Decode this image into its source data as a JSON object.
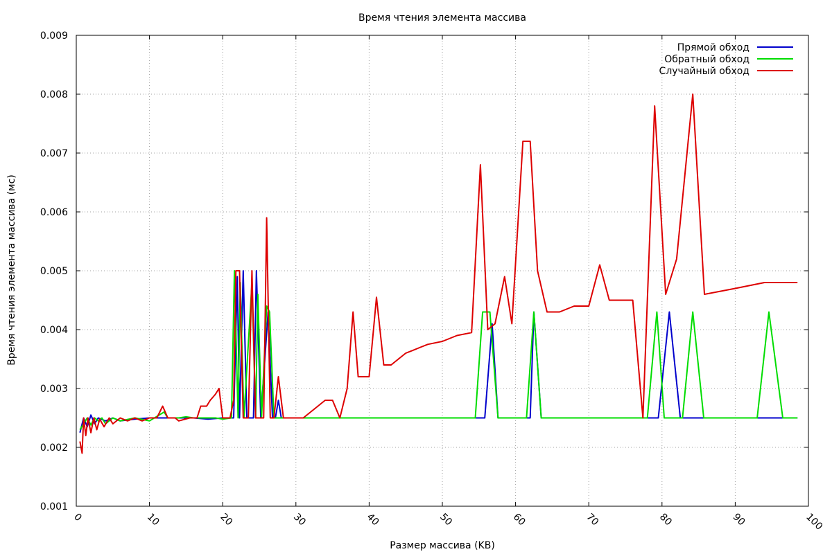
{
  "chart_data": {
    "type": "line",
    "title": "Время чтения элемента массива",
    "xlabel": "Размер массива (KB)",
    "ylabel": "Время чтения элемента массива (мс)",
    "xlim": [
      0,
      100
    ],
    "ylim": [
      0.001,
      0.009
    ],
    "x_ticks": [
      0,
      10,
      20,
      30,
      40,
      50,
      60,
      70,
      80,
      90,
      100
    ],
    "y_ticks": [
      "0.001",
      "0.002",
      "0.003",
      "0.004",
      "0.005",
      "0.006",
      "0.007",
      "0.008",
      "0.009"
    ],
    "grid": true,
    "legend_position": "top-right",
    "series": [
      {
        "name": "Прямой обход",
        "color": "#0000cc",
        "points": [
          [
            0.5,
            0.00225
          ],
          [
            1.0,
            0.0025
          ],
          [
            1.5,
            0.00235
          ],
          [
            2.0,
            0.00255
          ],
          [
            2.5,
            0.0024
          ],
          [
            3.0,
            0.0025
          ],
          [
            4,
            0.00245
          ],
          [
            5,
            0.0025
          ],
          [
            6,
            0.00245
          ],
          [
            8,
            0.00248
          ],
          [
            10,
            0.0025
          ],
          [
            12,
            0.0025
          ],
          [
            14,
            0.0025
          ],
          [
            16,
            0.0025
          ],
          [
            18,
            0.00248
          ],
          [
            20,
            0.0025
          ],
          [
            21.5,
            0.0025
          ],
          [
            22,
            0.0049
          ],
          [
            22.3,
            0.0025
          ],
          [
            22.8,
            0.005
          ],
          [
            23.3,
            0.0025
          ],
          [
            24.2,
            0.0025
          ],
          [
            24.6,
            0.005
          ],
          [
            25.2,
            0.0025
          ],
          [
            26.2,
            0.0043
          ],
          [
            26.8,
            0.0025
          ],
          [
            27.2,
            0.0025
          ],
          [
            27.6,
            0.0028
          ],
          [
            28.0,
            0.0025
          ],
          [
            30,
            0.0025
          ],
          [
            35,
            0.0025
          ],
          [
            40,
            0.0025
          ],
          [
            45,
            0.0025
          ],
          [
            50,
            0.0025
          ],
          [
            55,
            0.0025
          ],
          [
            55.8,
            0.0025
          ],
          [
            56.8,
            0.0041
          ],
          [
            57.6,
            0.0025
          ],
          [
            62,
            0.0025
          ],
          [
            62.5,
            0.0043
          ],
          [
            63.5,
            0.0025
          ],
          [
            70,
            0.0025
          ],
          [
            78,
            0.0025
          ],
          [
            79.5,
            0.0025
          ],
          [
            81.0,
            0.0043
          ],
          [
            82.5,
            0.0025
          ],
          [
            86,
            0.0025
          ],
          [
            92,
            0.0025
          ],
          [
            96,
            0.0025
          ],
          [
            98.5,
            0.0025
          ]
        ]
      },
      {
        "name": "Обратный обход",
        "color": "#00dd00",
        "points": [
          [
            0.5,
            0.0023
          ],
          [
            1.0,
            0.0024
          ],
          [
            1.5,
            0.0025
          ],
          [
            2.0,
            0.00238
          ],
          [
            2.5,
            0.0025
          ],
          [
            3.0,
            0.00245
          ],
          [
            3.5,
            0.0025
          ],
          [
            4,
            0.0024
          ],
          [
            5,
            0.0025
          ],
          [
            6,
            0.00245
          ],
          [
            8,
            0.0025
          ],
          [
            10,
            0.00245
          ],
          [
            12,
            0.0026
          ],
          [
            12.5,
            0.0025
          ],
          [
            14,
            0.0025
          ],
          [
            15,
            0.00252
          ],
          [
            16,
            0.0025
          ],
          [
            18,
            0.0025
          ],
          [
            19,
            0.0025
          ],
          [
            20,
            0.00248
          ],
          [
            21.2,
            0.0025
          ],
          [
            21.6,
            0.005
          ],
          [
            22.1,
            0.0025
          ],
          [
            22.4,
            0.0048
          ],
          [
            22.9,
            0.0025
          ],
          [
            24.0,
            0.0048
          ],
          [
            24.5,
            0.0025
          ],
          [
            24.8,
            0.0046
          ],
          [
            25.3,
            0.0025
          ],
          [
            26.0,
            0.0044
          ],
          [
            26.4,
            0.0043
          ],
          [
            27.0,
            0.0025
          ],
          [
            28,
            0.0025
          ],
          [
            29,
            0.0025
          ],
          [
            32,
            0.0025
          ],
          [
            36,
            0.0025
          ],
          [
            40,
            0.0025
          ],
          [
            45,
            0.0025
          ],
          [
            50,
            0.0025
          ],
          [
            54.5,
            0.0025
          ],
          [
            55.5,
            0.0043
          ],
          [
            56.5,
            0.0043
          ],
          [
            57.6,
            0.0025
          ],
          [
            61.5,
            0.0025
          ],
          [
            62.5,
            0.0043
          ],
          [
            63.5,
            0.0025
          ],
          [
            70,
            0.0025
          ],
          [
            78,
            0.0025
          ],
          [
            79.3,
            0.0043
          ],
          [
            80.3,
            0.0025
          ],
          [
            82.8,
            0.0025
          ],
          [
            84.2,
            0.0043
          ],
          [
            85.7,
            0.0025
          ],
          [
            90,
            0.0025
          ],
          [
            93,
            0.0025
          ],
          [
            94.6,
            0.0043
          ],
          [
            96.5,
            0.0025
          ],
          [
            98.5,
            0.0025
          ]
        ]
      },
      {
        "name": "Случайный обход",
        "color": "#dd0000",
        "points": [
          [
            0.5,
            0.0021
          ],
          [
            0.8,
            0.0019
          ],
          [
            1.0,
            0.0025
          ],
          [
            1.3,
            0.0022
          ],
          [
            1.6,
            0.0025
          ],
          [
            2.0,
            0.00225
          ],
          [
            2.4,
            0.0025
          ],
          [
            2.8,
            0.0023
          ],
          [
            3.2,
            0.00248
          ],
          [
            3.8,
            0.00235
          ],
          [
            4.5,
            0.0025
          ],
          [
            5,
            0.0024
          ],
          [
            6,
            0.0025
          ],
          [
            7,
            0.00245
          ],
          [
            8,
            0.0025
          ],
          [
            9,
            0.00245
          ],
          [
            10,
            0.0025
          ],
          [
            11,
            0.0025
          ],
          [
            11.8,
            0.0027
          ],
          [
            12.5,
            0.0025
          ],
          [
            13.5,
            0.0025
          ],
          [
            14,
            0.00245
          ],
          [
            15.5,
            0.0025
          ],
          [
            16.5,
            0.0025
          ],
          [
            17,
            0.0027
          ],
          [
            17.8,
            0.0027
          ],
          [
            18.3,
            0.0028
          ],
          [
            19,
            0.0029
          ],
          [
            19.5,
            0.003
          ],
          [
            20,
            0.0025
          ],
          [
            21,
            0.0025
          ],
          [
            21.5,
            0.0028
          ],
          [
            21.8,
            0.005
          ],
          [
            22.3,
            0.005
          ],
          [
            22.8,
            0.0025
          ],
          [
            23.5,
            0.0025
          ],
          [
            24,
            0.005
          ],
          [
            24.5,
            0.0025
          ],
          [
            25,
            0.0025
          ],
          [
            25.6,
            0.0025
          ],
          [
            26.0,
            0.0059
          ],
          [
            26.5,
            0.0025
          ],
          [
            27.0,
            0.0025
          ],
          [
            27.6,
            0.0032
          ],
          [
            28.3,
            0.0025
          ],
          [
            29,
            0.0025
          ],
          [
            31,
            0.0025
          ],
          [
            33,
            0.0027
          ],
          [
            34,
            0.0028
          ],
          [
            35,
            0.0028
          ],
          [
            36,
            0.0025
          ],
          [
            37,
            0.003
          ],
          [
            37.8,
            0.0043
          ],
          [
            38.5,
            0.0032
          ],
          [
            40,
            0.0032
          ],
          [
            41.0,
            0.00455
          ],
          [
            42,
            0.0034
          ],
          [
            43,
            0.0034
          ],
          [
            44,
            0.0035
          ],
          [
            45,
            0.0036
          ],
          [
            46,
            0.00365
          ],
          [
            47,
            0.0037
          ],
          [
            48,
            0.00375
          ],
          [
            50,
            0.0038
          ],
          [
            52,
            0.0039
          ],
          [
            54,
            0.00395
          ],
          [
            55.2,
            0.0068
          ],
          [
            56.2,
            0.004
          ],
          [
            57.2,
            0.0041
          ],
          [
            58.5,
            0.0049
          ],
          [
            59.5,
            0.0041
          ],
          [
            61,
            0.0072
          ],
          [
            62,
            0.0072
          ],
          [
            63,
            0.005
          ],
          [
            64.3,
            0.0043
          ],
          [
            66,
            0.0043
          ],
          [
            68,
            0.0044
          ],
          [
            70,
            0.0044
          ],
          [
            71.5,
            0.0051
          ],
          [
            72.8,
            0.0045
          ],
          [
            76,
            0.0045
          ],
          [
            77.4,
            0.0025
          ],
          [
            79,
            0.0078
          ],
          [
            80.5,
            0.0046
          ],
          [
            82,
            0.0052
          ],
          [
            84.2,
            0.008
          ],
          [
            85.8,
            0.0046
          ],
          [
            90,
            0.0047
          ],
          [
            94,
            0.0048
          ],
          [
            96,
            0.0048
          ],
          [
            98.5,
            0.0048
          ]
        ]
      }
    ]
  }
}
